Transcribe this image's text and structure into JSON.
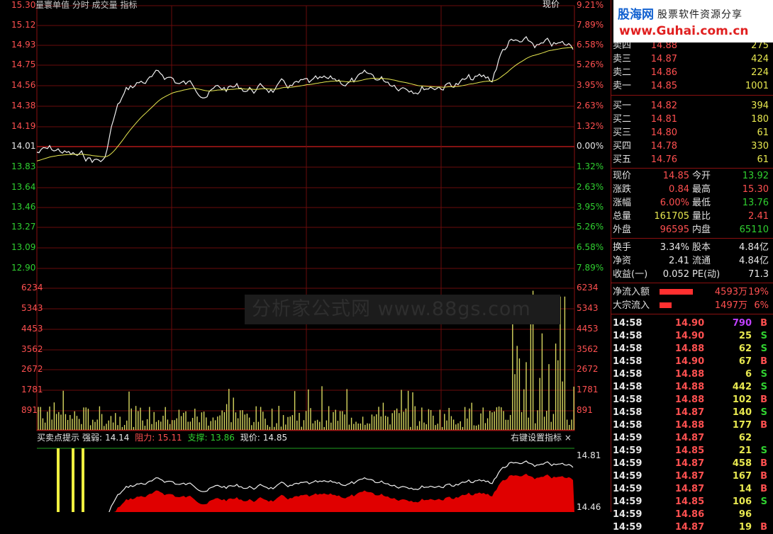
{
  "top_bar": {
    "text": "量寰单值  分时 成交量 指标"
  },
  "price_axis_left": [
    "15.30",
    "15.12",
    "14.93",
    "14.75",
    "14.56",
    "14.38",
    "14.19",
    "14.01",
    "13.83",
    "13.64",
    "13.46",
    "13.27",
    "13.09",
    "12.90"
  ],
  "price_axis_right": [
    "9.21%",
    "7.89%",
    "6.58%",
    "5.26%",
    "3.95%",
    "2.63%",
    "1.32%",
    "0.00%",
    "1.32%",
    "2.63%",
    "3.95%",
    "5.26%",
    "6.58%",
    "7.89%"
  ],
  "volume_axis": [
    "6234",
    "5343",
    "4453",
    "3562",
    "2672",
    "1781",
    "891"
  ],
  "top_right_label": "现价",
  "watermark": "分析家公式网 www.88gs.com",
  "indicator_bar": {
    "title": "买卖点提示",
    "strength_label": "强弱:",
    "strength_value": "14.14",
    "resistance_label": "阻力:",
    "resistance_value": "15.11",
    "support_label": "支撑:",
    "support_value": "13.86",
    "price_label": "现价:",
    "price_value": "14.85",
    "right_text": "右键设置指标 ×"
  },
  "indicator_axis": [
    "14.81",
    "14.46"
  ],
  "logo": {
    "brand": "股海网",
    "slogan": "股票软件资源分享",
    "url": "www.Guhai.com.cn"
  },
  "order_book": {
    "asks": [
      {
        "label": "卖四",
        "price": "14.88",
        "vol": "275"
      },
      {
        "label": "卖三",
        "price": "14.87",
        "vol": "424"
      },
      {
        "label": "卖二",
        "price": "14.86",
        "vol": "224"
      },
      {
        "label": "卖一",
        "price": "14.85",
        "vol": "1001"
      }
    ],
    "bids": [
      {
        "label": "买一",
        "price": "14.82",
        "vol": "394"
      },
      {
        "label": "买二",
        "price": "14.81",
        "vol": "180"
      },
      {
        "label": "买三",
        "price": "14.80",
        "vol": "61"
      },
      {
        "label": "买四",
        "price": "14.78",
        "vol": "330"
      },
      {
        "label": "买五",
        "price": "14.76",
        "vol": "61"
      }
    ]
  },
  "quote": [
    {
      "l1": "现价",
      "v1": "14.85",
      "c1": "red",
      "l2": "今开",
      "v2": "13.92",
      "c2": "green"
    },
    {
      "l1": "涨跌",
      "v1": "0.84",
      "c1": "red",
      "l2": "最高",
      "v2": "15.30",
      "c2": "red"
    },
    {
      "l1": "涨幅",
      "v1": "6.00%",
      "c1": "red",
      "l2": "最低",
      "v2": "13.76",
      "c2": "green"
    },
    {
      "l1": "总量",
      "v1": "161705",
      "c1": "yellow",
      "l2": "量比",
      "v2": "2.41",
      "c2": "red"
    },
    {
      "l1": "外盘",
      "v1": "96595",
      "c1": "red",
      "l2": "内盘",
      "v2": "65110",
      "c2": "green"
    }
  ],
  "fundamentals": [
    {
      "l1": "换手",
      "v1": "3.34%",
      "l2": "股本",
      "v2": "4.84亿"
    },
    {
      "l1": "净资",
      "v1": "2.41",
      "l2": "流通",
      "v2": "4.84亿"
    },
    {
      "l1": "收益(一)",
      "v1": "0.052",
      "l2": "PE(动)",
      "v2": "71.3"
    }
  ],
  "flows": [
    {
      "label": "净流入额",
      "amount": "4593万",
      "pct": "19%",
      "bar": 0.75
    },
    {
      "label": "大宗流入",
      "amount": "1497万",
      "pct": "6%",
      "bar": 0.28
    }
  ],
  "ticks": [
    {
      "t": "14:58",
      "p": "14.90",
      "v": "790",
      "s": "B",
      "vc": "#c040ff"
    },
    {
      "t": "14:58",
      "p": "14.90",
      "v": "25",
      "s": "S",
      "vc": "#e8e850"
    },
    {
      "t": "14:58",
      "p": "14.88",
      "v": "62",
      "s": "S",
      "vc": "#e8e850"
    },
    {
      "t": "14:58",
      "p": "14.90",
      "v": "67",
      "s": "B",
      "vc": "#e8e850"
    },
    {
      "t": "14:58",
      "p": "14.88",
      "v": "6",
      "s": "S",
      "vc": "#e8e850"
    },
    {
      "t": "14:58",
      "p": "14.88",
      "v": "442",
      "s": "S",
      "vc": "#e8e850"
    },
    {
      "t": "14:58",
      "p": "14.88",
      "v": "102",
      "s": "B",
      "vc": "#e8e850"
    },
    {
      "t": "14:58",
      "p": "14.87",
      "v": "140",
      "s": "S",
      "vc": "#e8e850"
    },
    {
      "t": "14:58",
      "p": "14.88",
      "v": "177",
      "s": "B",
      "vc": "#e8e850"
    },
    {
      "t": "14:59",
      "p": "14.87",
      "v": "62",
      "s": "",
      "vc": "#e8e850"
    },
    {
      "t": "14:59",
      "p": "14.85",
      "v": "21",
      "s": "S",
      "vc": "#e8e850"
    },
    {
      "t": "14:59",
      "p": "14.87",
      "v": "458",
      "s": "B",
      "vc": "#e8e850"
    },
    {
      "t": "14:59",
      "p": "14.87",
      "v": "167",
      "s": "B",
      "vc": "#e8e850"
    },
    {
      "t": "14:59",
      "p": "14.87",
      "v": "14",
      "s": "B",
      "vc": "#e8e850"
    },
    {
      "t": "14:59",
      "p": "14.85",
      "v": "106",
      "s": "S",
      "vc": "#e8e850"
    },
    {
      "t": "14:59",
      "p": "14.86",
      "v": "96",
      "s": "",
      "vc": "#e8e850"
    },
    {
      "t": "14:59",
      "p": "14.87",
      "v": "19",
      "s": "B",
      "vc": "#e8e850"
    }
  ]
}
